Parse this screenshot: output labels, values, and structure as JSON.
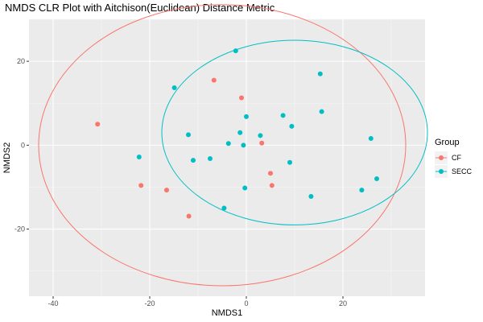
{
  "chart_data": {
    "type": "scatter",
    "title": "NMDS CLR Plot with Aitchison(Euclidean) Distance Metric",
    "xlabel": "NMDS1",
    "ylabel": "NMDS2",
    "xlim": [
      -45,
      37
    ],
    "ylim": [
      -36,
      30
    ],
    "x_ticks": [
      -40,
      -20,
      0,
      20
    ],
    "y_ticks": [
      -20,
      0,
      20
    ],
    "x_tick_labels": [
      "-40",
      "-20",
      "0",
      "20"
    ],
    "y_tick_labels": [
      "-20",
      "0",
      "20"
    ],
    "grid": true,
    "legend": {
      "title": "Group",
      "placement": "right"
    },
    "series": [
      {
        "name": "CF",
        "color": "#F8766D",
        "points": [
          [
            -30.8,
            5.0
          ],
          [
            -6.7,
            15.5
          ],
          [
            -1.0,
            11.3
          ],
          [
            3.2,
            0.5
          ],
          [
            5.0,
            -6.7
          ],
          [
            5.3,
            -9.6
          ],
          [
            -21.8,
            -9.6
          ],
          [
            -16.5,
            -10.7
          ],
          [
            -11.9,
            -16.9
          ]
        ],
        "ellipse": {
          "cx": -5,
          "cy": 0,
          "rx": 38,
          "ry": 33.5,
          "rotation": 0
        }
      },
      {
        "name": "SECC",
        "color": "#00BFC4",
        "points": [
          [
            -2.2,
            22.5
          ],
          [
            15.3,
            17.0
          ],
          [
            -14.9,
            13.7
          ],
          [
            15.6,
            8.0
          ],
          [
            0.0,
            6.8
          ],
          [
            7.6,
            7.1
          ],
          [
            9.4,
            4.5
          ],
          [
            -12.0,
            2.5
          ],
          [
            -1.3,
            3.0
          ],
          [
            2.9,
            2.3
          ],
          [
            -3.7,
            0.4
          ],
          [
            -0.6,
            0.0
          ],
          [
            25.8,
            1.6
          ],
          [
            -22.2,
            -2.8
          ],
          [
            -7.5,
            -3.2
          ],
          [
            -11.0,
            -3.6
          ],
          [
            9.0,
            -4.1
          ],
          [
            -0.3,
            -10.2
          ],
          [
            13.4,
            -12.2
          ],
          [
            27.0,
            -8.0
          ],
          [
            23.9,
            -10.7
          ],
          [
            -4.6,
            -15.0
          ]
        ],
        "ellipse": {
          "cx": 10,
          "cy": 3,
          "rx": 27.5,
          "ry": 22,
          "rotation": 0
        }
      }
    ]
  }
}
